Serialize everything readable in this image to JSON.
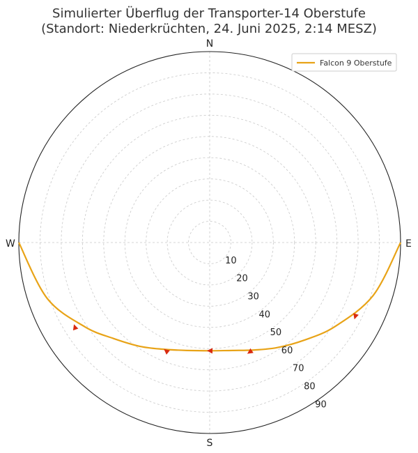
{
  "title": {
    "line1": "Simulierter Überflug der Transporter-14 Oberstufe",
    "line2": "(Standort: Niederkrüchten, 24. Juni 2025, 2:14 MESZ)"
  },
  "legend": {
    "label": "Falcon 9 Oberstufe",
    "placement": "top-right"
  },
  "colors": {
    "track": "#E8A317",
    "arrow": "#D92B10",
    "grid": "#c8c8c8",
    "frame": "#222222"
  },
  "chart_data": {
    "type": "line",
    "projection": "polar azimuth / zenith angle",
    "title": "Simulierter Überflug der Transporter-14 Oberstufe (Standort: Niederkrüchten, 24. Juni 2025, 2:14 MESZ)",
    "direction_labels": {
      "north": "N",
      "east": "E",
      "south": "S",
      "west": "W"
    },
    "radial_ticks": [
      "10",
      "20",
      "30",
      "40",
      "50",
      "60",
      "70",
      "80",
      "90"
    ],
    "radial_range": [
      0,
      90
    ],
    "grid": true,
    "series": [
      {
        "name": "Falcon 9 Oberstufe",
        "points_az_zenith": [
          [
            90,
            90
          ],
          [
            108,
            81
          ],
          [
            124,
            71
          ],
          [
            136,
            64
          ],
          [
            147,
            59
          ],
          [
            157,
            55
          ],
          [
            168,
            52
          ],
          [
            180,
            51
          ],
          [
            192,
            52
          ],
          [
            204,
            55
          ],
          [
            214,
            59
          ],
          [
            225,
            64
          ],
          [
            236,
            71
          ],
          [
            251,
            81
          ],
          [
            270,
            90
          ]
        ],
        "arrows_az_zenith": [
          [
            117,
            77
          ],
          [
            160,
            55
          ],
          [
            180,
            51
          ],
          [
            202,
            55
          ],
          [
            238,
            75
          ]
        ]
      }
    ]
  }
}
